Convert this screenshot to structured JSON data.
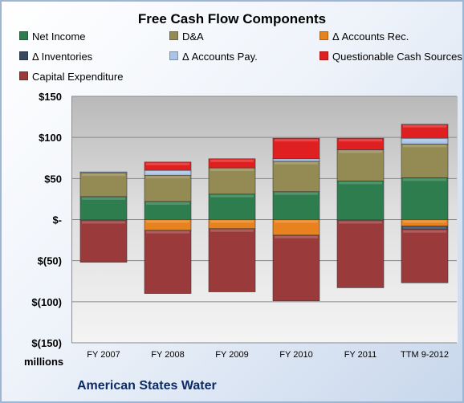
{
  "chart_data": {
    "type": "bar",
    "stacked": true,
    "title": "Free Cash Flow Components",
    "categories": [
      "FY 2007",
      "FY 2008",
      "FY 2009",
      "FY 2010",
      "FY 2011",
      "TTM 9-2012"
    ],
    "ylim": [
      -150,
      150
    ],
    "yticks": [
      150,
      100,
      50,
      0,
      -50,
      -100,
      -150
    ],
    "ytick_labels": [
      "$150",
      "$100",
      "$50",
      "$-",
      "$(50)",
      "$(100)",
      "$(150)"
    ],
    "units_label": "millions",
    "grid": true,
    "legend_position": "top",
    "series": [
      {
        "name": "Net Income",
        "color": "#2e7d4f",
        "values": [
          28,
          22,
          31,
          34,
          47,
          51
        ]
      },
      {
        "name": "D&A",
        "color": "#948a54",
        "values": [
          29,
          32,
          32,
          37,
          38,
          41
        ]
      },
      {
        "name": "Δ Accounts Rec.",
        "color": "#e8821e",
        "values": [
          -1,
          -13,
          -11,
          -19,
          -1,
          -8
        ]
      },
      {
        "name": "Δ Inventories",
        "color": "#3a4a5e",
        "values": [
          0,
          0,
          0,
          0,
          0,
          -4
        ]
      },
      {
        "name": "Δ Accounts Pay.",
        "color": "#aac3e6",
        "values": [
          1,
          6,
          0,
          3,
          0,
          7
        ]
      },
      {
        "name": "Questionable Cash Sources",
        "color": "#e02020",
        "values": [
          0,
          10,
          11,
          25,
          14,
          17
        ]
      },
      {
        "name": "Capital Expenditure",
        "color": "#9b3a3a",
        "values": [
          -51,
          -77,
          -77,
          -80,
          -82,
          -65
        ]
      }
    ]
  },
  "footer": {
    "company": "American States Water"
  }
}
